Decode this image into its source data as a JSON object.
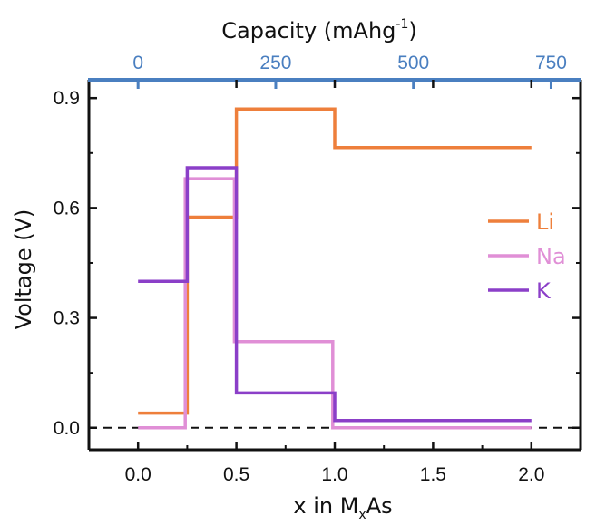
{
  "chart_data": {
    "type": "line",
    "step": true,
    "xlabel": "x in M",
    "xlabel_sub": "x",
    "xlabel_tail": "As",
    "ylabel": "Voltage (V)",
    "top_xlabel": "Capacity (mAhg",
    "top_xlabel_sup": "-1",
    "top_xlabel_tail": ")",
    "xlim": [
      -0.25,
      2.25
    ],
    "ylim": [
      -0.06,
      0.95
    ],
    "x_ticks": [
      0.0,
      0.5,
      1.0,
      1.5,
      2.0
    ],
    "x_tick_labels": [
      "0.0",
      "0.5",
      "1.0",
      "1.5",
      "2.0"
    ],
    "x_minor_ticks": [
      0.25,
      0.75,
      1.25,
      1.75
    ],
    "y_ticks": [
      0.0,
      0.3,
      0.6,
      0.9
    ],
    "y_tick_labels": [
      "0.0",
      "0.3",
      "0.6",
      "0.9"
    ],
    "y_minor_ticks": [
      0.15,
      0.45,
      0.75
    ],
    "top_ticks": [
      0,
      250,
      500,
      750
    ],
    "top_tick_labels": [
      "0",
      "250",
      "500",
      "750"
    ],
    "top_xlim": [
      0,
      750
    ],
    "top_x_range_in_bottom_units": [
      0.0,
      2.1
    ],
    "zero_line": 0.0,
    "legend_position": "right",
    "series": [
      {
        "name": "Li",
        "color": "#ee7f3b",
        "x": [
          0.0,
          0.25,
          0.25,
          0.5,
          0.5,
          1.0,
          1.0,
          2.0
        ],
        "y": [
          0.04,
          0.04,
          0.575,
          0.575,
          0.87,
          0.87,
          0.765,
          0.765
        ]
      },
      {
        "name": "Na",
        "color": "#e08fd6",
        "x": [
          0.0,
          0.24,
          0.24,
          0.49,
          0.49,
          0.99,
          0.99,
          2.0
        ],
        "y": [
          0.0,
          0.0,
          0.68,
          0.68,
          0.235,
          0.235,
          0.0,
          0.0
        ]
      },
      {
        "name": "K",
        "color": "#8b3fc8",
        "x": [
          0.0,
          0.25,
          0.25,
          0.5,
          0.5,
          1.0,
          1.0,
          2.0
        ],
        "y": [
          0.4,
          0.4,
          0.71,
          0.71,
          0.095,
          0.095,
          0.02,
          0.02
        ]
      }
    ],
    "top_axis_color": "#4a7fc0",
    "frame_color": "#111111"
  }
}
